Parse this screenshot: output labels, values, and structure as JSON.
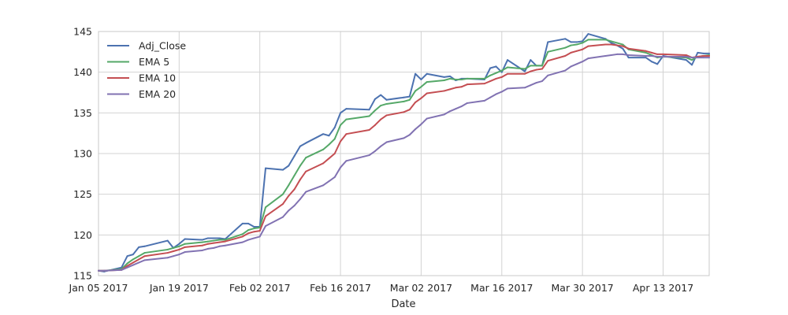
{
  "chart_data": {
    "type": "line",
    "title": "",
    "xlabel": "Date",
    "ylabel": "",
    "x_range": [
      "2017-01-05",
      "2017-04-21"
    ],
    "ylim": [
      115,
      145
    ],
    "y_ticks": [
      115,
      120,
      125,
      130,
      135,
      140,
      145
    ],
    "x_ticks": [
      {
        "date": "2017-01-05",
        "label": "Jan 05 2017"
      },
      {
        "date": "2017-01-19",
        "label": "Jan 19 2017"
      },
      {
        "date": "2017-02-02",
        "label": "Feb 02 2017"
      },
      {
        "date": "2017-02-16",
        "label": "Feb 16 2017"
      },
      {
        "date": "2017-03-02",
        "label": "Mar 02 2017"
      },
      {
        "date": "2017-03-16",
        "label": "Mar 16 2017"
      },
      {
        "date": "2017-03-30",
        "label": "Mar 30 2017"
      },
      {
        "date": "2017-04-13",
        "label": "Apr 13 2017"
      }
    ],
    "grid": true,
    "background": "#ffffff",
    "grid_color": "#d3d3d3",
    "legend_position": "top-left",
    "x": [
      "2017-01-05",
      "2017-01-06",
      "2017-01-09",
      "2017-01-10",
      "2017-01-11",
      "2017-01-12",
      "2017-01-13",
      "2017-01-17",
      "2017-01-18",
      "2017-01-19",
      "2017-01-20",
      "2017-01-23",
      "2017-01-24",
      "2017-01-25",
      "2017-01-26",
      "2017-01-27",
      "2017-01-30",
      "2017-01-31",
      "2017-02-01",
      "2017-02-02",
      "2017-02-03",
      "2017-02-06",
      "2017-02-07",
      "2017-02-08",
      "2017-02-09",
      "2017-02-10",
      "2017-02-13",
      "2017-02-14",
      "2017-02-15",
      "2017-02-16",
      "2017-02-17",
      "2017-02-21",
      "2017-02-22",
      "2017-02-23",
      "2017-02-24",
      "2017-02-27",
      "2017-02-28",
      "2017-03-01",
      "2017-03-02",
      "2017-03-03",
      "2017-03-06",
      "2017-03-07",
      "2017-03-08",
      "2017-03-09",
      "2017-03-10",
      "2017-03-13",
      "2017-03-14",
      "2017-03-15",
      "2017-03-16",
      "2017-03-17",
      "2017-03-20",
      "2017-03-21",
      "2017-03-22",
      "2017-03-23",
      "2017-03-24",
      "2017-03-27",
      "2017-03-28",
      "2017-03-29",
      "2017-03-30",
      "2017-03-31",
      "2017-04-03",
      "2017-04-04",
      "2017-04-05",
      "2017-04-06",
      "2017-04-07",
      "2017-04-10",
      "2017-04-11",
      "2017-04-12",
      "2017-04-13",
      "2017-04-17",
      "2017-04-18",
      "2017-04-19",
      "2017-04-20",
      "2017-04-21"
    ],
    "series": [
      {
        "name": "Adj_Close",
        "color": "#4c72b0",
        "values": [
          115.6,
          115.5,
          116.0,
          117.4,
          117.6,
          118.5,
          118.6,
          119.3,
          118.4,
          118.9,
          119.5,
          119.4,
          119.6,
          119.6,
          119.6,
          119.5,
          121.4,
          121.4,
          121.0,
          121.0,
          128.2,
          128.0,
          128.5,
          129.7,
          130.9,
          131.3,
          132.4,
          132.2,
          133.2,
          135.0,
          135.5,
          135.4,
          136.7,
          137.2,
          136.6,
          136.9,
          137.0,
          139.8,
          139.1,
          139.8,
          139.4,
          139.5,
          139.0,
          139.2,
          139.2,
          139.1,
          140.5,
          140.7,
          140.0,
          141.5,
          140.1,
          141.5,
          140.8,
          140.8,
          143.7,
          144.1,
          143.7,
          143.7,
          143.8,
          144.7,
          144.1,
          143.6,
          143.3,
          142.9,
          141.8,
          141.8,
          141.3,
          141.0,
          142.0,
          141.5,
          140.9,
          142.4,
          142.3,
          142.3
        ]
      },
      {
        "name": "EMA 5",
        "color": "#55a868",
        "values": [
          115.6,
          115.6,
          115.8,
          116.5,
          117.0,
          117.4,
          117.8,
          118.2,
          118.4,
          118.6,
          118.9,
          119.1,
          119.2,
          119.3,
          119.4,
          119.4,
          120.1,
          120.6,
          120.8,
          120.9,
          123.4,
          125.0,
          126.1,
          127.3,
          128.5,
          129.5,
          130.5,
          131.1,
          131.8,
          133.5,
          134.2,
          134.6,
          135.3,
          135.9,
          136.1,
          136.4,
          136.6,
          137.7,
          138.2,
          138.8,
          139.0,
          139.2,
          139.1,
          139.1,
          139.2,
          139.2,
          139.6,
          139.9,
          140.2,
          140.6,
          140.4,
          140.8,
          140.8,
          140.8,
          142.5,
          143.0,
          143.3,
          143.4,
          143.6,
          144.0,
          144.0,
          143.8,
          143.6,
          143.4,
          142.8,
          142.4,
          142.1,
          141.8,
          141.9,
          141.8,
          141.5,
          141.9,
          142.0,
          142.1
        ]
      },
      {
        "name": "EMA 10",
        "color": "#c44e52",
        "values": [
          115.6,
          115.6,
          115.7,
          116.2,
          116.6,
          117.0,
          117.4,
          117.8,
          118.0,
          118.2,
          118.5,
          118.7,
          118.9,
          119.0,
          119.1,
          119.2,
          119.8,
          120.2,
          120.4,
          120.5,
          122.3,
          123.8,
          124.8,
          125.6,
          126.8,
          127.8,
          128.8,
          129.4,
          130.0,
          131.5,
          132.4,
          132.9,
          133.5,
          134.2,
          134.7,
          135.1,
          135.4,
          136.3,
          136.8,
          137.4,
          137.7,
          137.9,
          138.1,
          138.2,
          138.5,
          138.6,
          138.9,
          139.2,
          139.4,
          139.8,
          139.8,
          140.1,
          140.3,
          140.4,
          141.4,
          142.0,
          142.4,
          142.6,
          142.8,
          143.2,
          143.4,
          143.4,
          143.3,
          143.2,
          142.9,
          142.6,
          142.4,
          142.2,
          142.2,
          142.1,
          141.8,
          141.9,
          142.0,
          142.0
        ]
      },
      {
        "name": "EMA 20",
        "color": "#8172b2",
        "values": [
          115.6,
          115.6,
          115.7,
          116.0,
          116.3,
          116.6,
          116.9,
          117.2,
          117.4,
          117.6,
          117.9,
          118.1,
          118.3,
          118.4,
          118.6,
          118.7,
          119.1,
          119.4,
          119.6,
          119.8,
          121.1,
          122.2,
          123.0,
          123.6,
          124.4,
          125.3,
          126.1,
          126.6,
          127.1,
          128.3,
          129.1,
          129.8,
          130.3,
          130.9,
          131.4,
          131.9,
          132.3,
          133.0,
          133.6,
          134.3,
          134.8,
          135.2,
          135.5,
          135.8,
          136.2,
          136.5,
          136.9,
          137.3,
          137.6,
          138.0,
          138.1,
          138.4,
          138.7,
          138.9,
          139.6,
          140.2,
          140.7,
          141.0,
          141.3,
          141.7,
          142.0,
          142.1,
          142.2,
          142.2,
          142.1,
          142.0,
          142.0,
          141.9,
          141.9,
          141.9,
          141.8,
          141.8,
          141.8,
          141.8
        ]
      }
    ]
  }
}
